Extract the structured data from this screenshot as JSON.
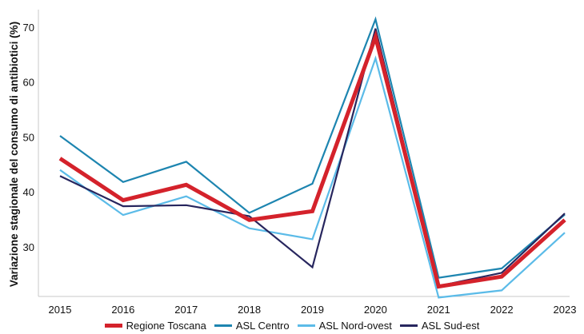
{
  "chart_data": {
    "type": "line",
    "ylabel": "Variazione stagionale del consumo di antibiotici (%)",
    "xlabel": "",
    "x": [
      "2015",
      "2016",
      "2017",
      "2018",
      "2019",
      "2020",
      "2021",
      "2022",
      "2023"
    ],
    "ylim": [
      21,
      72
    ],
    "yticks": [
      30,
      40,
      50,
      60,
      70
    ],
    "grid": false,
    "legend_position": "bottom",
    "series": [
      {
        "name": "Regione Toscana",
        "color": "#d4222b",
        "width": 5,
        "values": [
          46.1,
          38.5,
          41.3,
          34.9,
          36.5,
          68.2,
          22.8,
          24.6,
          34.9
        ]
      },
      {
        "name": "ASL Centro",
        "color": "#1d85b0",
        "width": 2.2,
        "values": [
          50.2,
          41.8,
          45.5,
          36.2,
          41.5,
          71.4,
          24.4,
          26.1,
          35.9
        ]
      },
      {
        "name": "ASL Nord-ovest",
        "color": "#5bbbe8",
        "width": 2.2,
        "values": [
          44.0,
          35.8,
          39.2,
          33.4,
          31.4,
          64.3,
          20.8,
          22.1,
          32.6
        ]
      },
      {
        "name": "ASL Sud-est",
        "color": "#27265e",
        "width": 2.2,
        "values": [
          42.9,
          37.4,
          37.6,
          35.6,
          26.3,
          69.7,
          22.9,
          25.3,
          36.1
        ]
      }
    ]
  }
}
